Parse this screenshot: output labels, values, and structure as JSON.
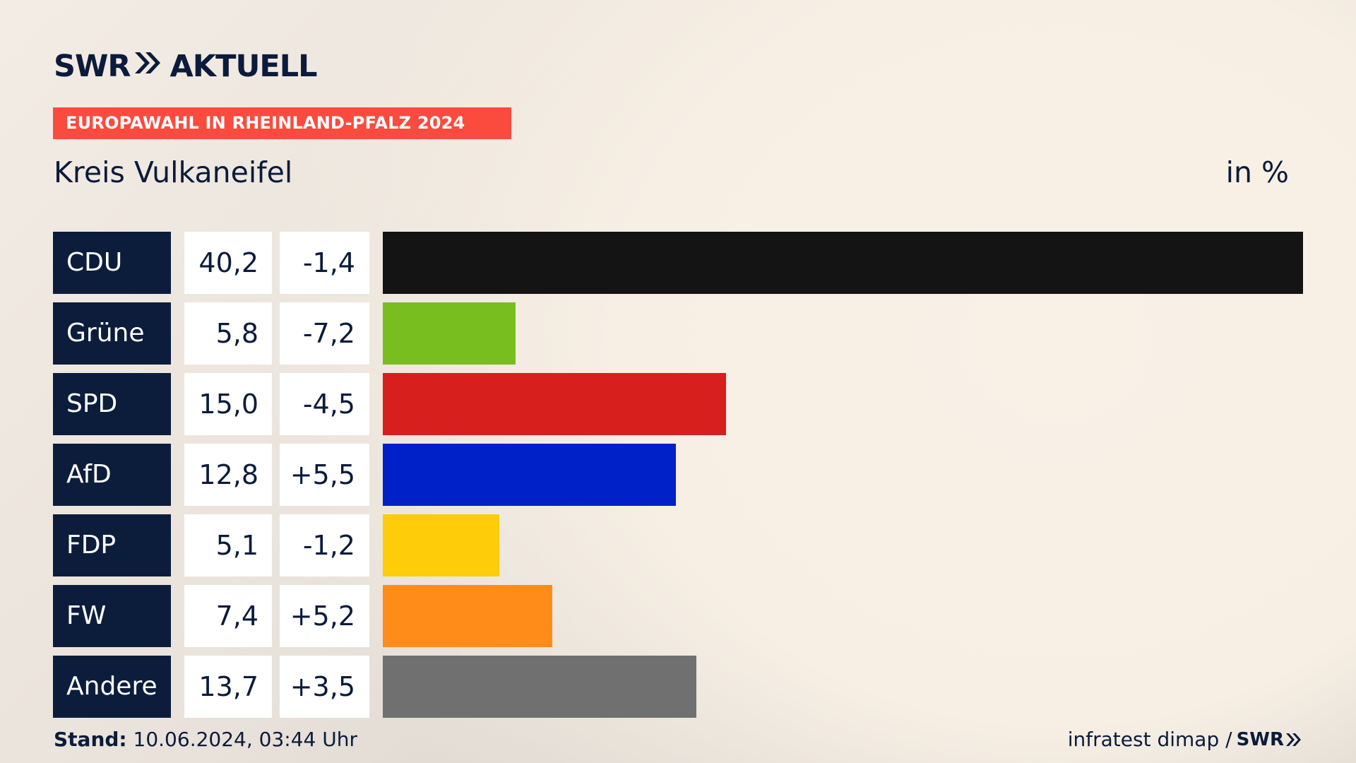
{
  "header": {
    "brand_left": "SWR",
    "brand_right": "AKTUELL",
    "tag": "EUROPAWAHL IN RHEINLAND-PFALZ 2024",
    "subtitle": "Kreis Vulkaneifel",
    "unit": "in %"
  },
  "footer": {
    "stand_label": "Stand:",
    "stand_value": "10.06.2024, 03:44 Uhr",
    "source": "infratest dimap /",
    "source_brand": "SWR"
  },
  "colors": {
    "accent_tag": "#fa4b3e",
    "navy": "#0c1d3c"
  },
  "chart_data": {
    "type": "bar",
    "orientation": "horizontal",
    "categories": [
      "CDU",
      "Grüne",
      "SPD",
      "AfD",
      "FDP",
      "FW",
      "Andere"
    ],
    "values": [
      40.2,
      5.8,
      15.0,
      12.8,
      5.1,
      7.4,
      13.7
    ],
    "value_labels": [
      "40,2",
      "5,8",
      "15,0",
      "12,8",
      "5,1",
      "7,4",
      "13,7"
    ],
    "diff_labels": [
      "-1,4",
      "-7,2",
      "-4,5",
      "+5,5",
      "-1,2",
      "+5,2",
      "+3,5"
    ],
    "diffs": [
      -1.4,
      -7.2,
      -4.5,
      5.5,
      -1.2,
      5.2,
      3.5
    ],
    "colors": [
      "#141414",
      "#78be1e",
      "#d71f1e",
      "#0020c8",
      "#ffcc0a",
      "#ff8c19",
      "#707070"
    ],
    "xlim": [
      0,
      40.2
    ],
    "title": "Kreis Vulkaneifel",
    "xlabel": "",
    "ylabel": "",
    "grid": false
  }
}
